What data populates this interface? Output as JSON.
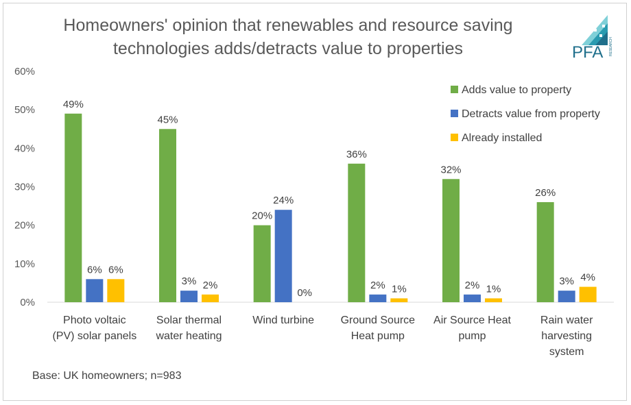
{
  "chart_data": {
    "type": "bar",
    "title": "Homeowners' opinion that renewables and resource saving technologies adds/detracts value to properties",
    "title_lines": [
      "Homeowners' opinion that renewables and resource saving",
      "technologies adds/detracts value to properties"
    ],
    "categories": [
      [
        "Photo voltaic",
        "(PV) solar panels"
      ],
      [
        "Solar thermal",
        "water heating"
      ],
      [
        "Wind turbine"
      ],
      [
        "Ground Source",
        "Heat pump"
      ],
      [
        "Air Source Heat",
        "pump"
      ],
      [
        "Rain water",
        "harvesting",
        "system"
      ]
    ],
    "series": [
      {
        "name": "Adds value to property",
        "color": "#70ad47",
        "values": [
          49,
          45,
          20,
          36,
          32,
          26
        ],
        "labels": [
          "49%",
          "45%",
          "20%",
          "36%",
          "32%",
          "26%"
        ]
      },
      {
        "name": "Detracts value from property",
        "color": "#4472c4",
        "values": [
          6,
          3,
          24,
          2,
          2,
          3
        ],
        "labels": [
          "6%",
          "3%",
          "24%",
          "2%",
          "2%",
          "3%"
        ]
      },
      {
        "name": "Already installed",
        "color": "#ffc000",
        "values": [
          6,
          2,
          0,
          1,
          1,
          4
        ],
        "labels": [
          "6%",
          "2%",
          "0%",
          "1%",
          "1%",
          "4%"
        ]
      }
    ],
    "yticks": [
      "0%",
      "10%",
      "20%",
      "30%",
      "40%",
      "50%",
      "60%"
    ],
    "ylim": [
      0,
      60
    ],
    "grid": false,
    "legend_position": "top-right",
    "xlabel": "",
    "ylabel": ""
  },
  "footnote": "Base: UK homeowners; n=983",
  "logo": {
    "text": "PFA",
    "subtext": "RESEARCH",
    "color": "#1f6f8b"
  }
}
